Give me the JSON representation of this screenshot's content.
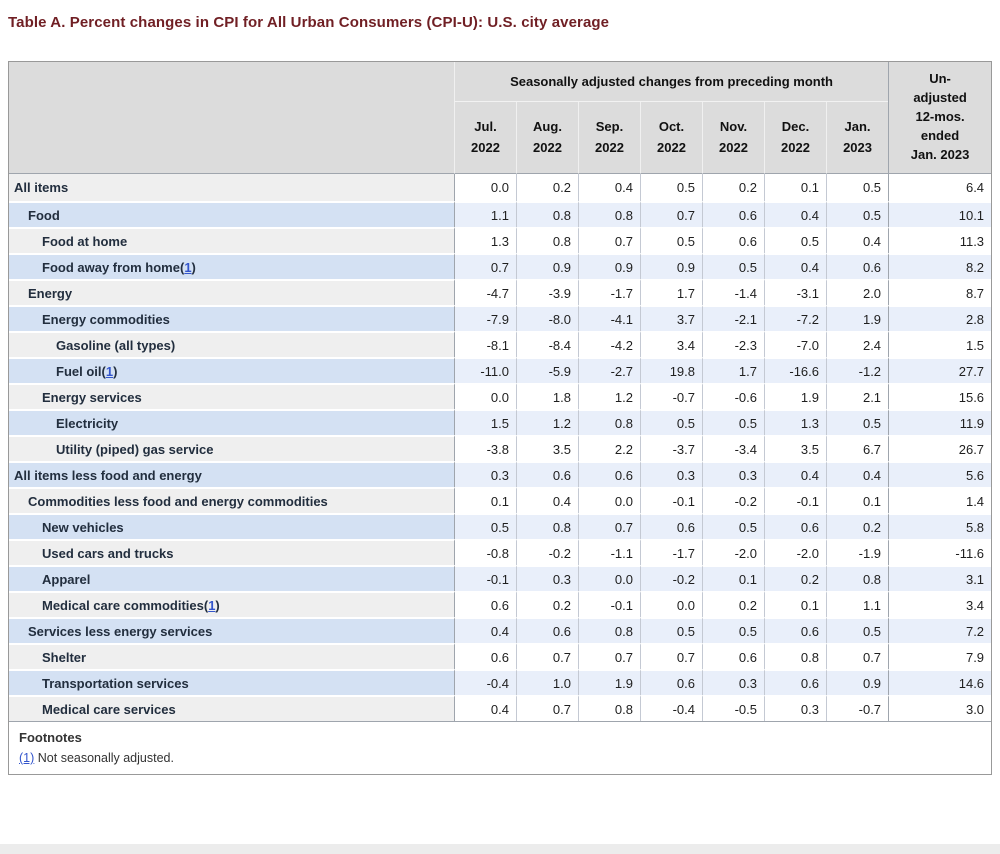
{
  "page": {
    "title": "Table A. Percent changes in CPI for All Urban Consumers (CPI-U): U.S. city average"
  },
  "colors": {
    "title_accent": "#701f24",
    "link_blue": "#3355cc",
    "header_bg": "#dcdcdc",
    "stub_blue": "#d4e1f3",
    "data_blue": "#e9effa",
    "stub_gray": "#efefef"
  },
  "table": {
    "group_header": "Seasonally adjusted changes from preceding month",
    "unadjusted_header": "Un-\nadjusted\n12-mos.\nended\nJan. 2023",
    "columns": [
      "Jul.\n2022",
      "Aug.\n2022",
      "Sep.\n2022",
      "Oct.\n2022",
      "Nov.\n2022",
      "Dec.\n2022",
      "Jan.\n2023"
    ],
    "rows": [
      {
        "label": "All items",
        "indent": 0,
        "footnote": null,
        "values": [
          "0.0",
          "0.2",
          "0.4",
          "0.5",
          "0.2",
          "0.1",
          "0.5",
          "6.4"
        ]
      },
      {
        "label": "Food",
        "indent": 1,
        "footnote": null,
        "values": [
          "1.1",
          "0.8",
          "0.8",
          "0.7",
          "0.6",
          "0.4",
          "0.5",
          "10.1"
        ]
      },
      {
        "label": "Food at home",
        "indent": 2,
        "footnote": null,
        "values": [
          "1.3",
          "0.8",
          "0.7",
          "0.5",
          "0.6",
          "0.5",
          "0.4",
          "11.3"
        ]
      },
      {
        "label": "Food away from home",
        "indent": 2,
        "footnote": "1",
        "values": [
          "0.7",
          "0.9",
          "0.9",
          "0.9",
          "0.5",
          "0.4",
          "0.6",
          "8.2"
        ]
      },
      {
        "label": "Energy",
        "indent": 1,
        "footnote": null,
        "values": [
          "-4.7",
          "-3.9",
          "-1.7",
          "1.7",
          "-1.4",
          "-3.1",
          "2.0",
          "8.7"
        ]
      },
      {
        "label": "Energy commodities",
        "indent": 2,
        "footnote": null,
        "values": [
          "-7.9",
          "-8.0",
          "-4.1",
          "3.7",
          "-2.1",
          "-7.2",
          "1.9",
          "2.8"
        ]
      },
      {
        "label": "Gasoline (all types)",
        "indent": 3,
        "footnote": null,
        "values": [
          "-8.1",
          "-8.4",
          "-4.2",
          "3.4",
          "-2.3",
          "-7.0",
          "2.4",
          "1.5"
        ]
      },
      {
        "label": "Fuel oil",
        "indent": 3,
        "footnote": "1",
        "values": [
          "-11.0",
          "-5.9",
          "-2.7",
          "19.8",
          "1.7",
          "-16.6",
          "-1.2",
          "27.7"
        ]
      },
      {
        "label": "Energy services",
        "indent": 2,
        "footnote": null,
        "values": [
          "0.0",
          "1.8",
          "1.2",
          "-0.7",
          "-0.6",
          "1.9",
          "2.1",
          "15.6"
        ]
      },
      {
        "label": "Electricity",
        "indent": 3,
        "footnote": null,
        "values": [
          "1.5",
          "1.2",
          "0.8",
          "0.5",
          "0.5",
          "1.3",
          "0.5",
          "11.9"
        ]
      },
      {
        "label": "Utility (piped) gas service",
        "indent": 3,
        "footnote": null,
        "values": [
          "-3.8",
          "3.5",
          "2.2",
          "-3.7",
          "-3.4",
          "3.5",
          "6.7",
          "26.7"
        ]
      },
      {
        "label": "All items less food and energy",
        "indent": 0,
        "footnote": null,
        "values": [
          "0.3",
          "0.6",
          "0.6",
          "0.3",
          "0.3",
          "0.4",
          "0.4",
          "5.6"
        ]
      },
      {
        "label": "Commodities less food and energy commodities",
        "indent": 1,
        "footnote": null,
        "values": [
          "0.1",
          "0.4",
          "0.0",
          "-0.1",
          "-0.2",
          "-0.1",
          "0.1",
          "1.4"
        ]
      },
      {
        "label": "New vehicles",
        "indent": 2,
        "footnote": null,
        "values": [
          "0.5",
          "0.8",
          "0.7",
          "0.6",
          "0.5",
          "0.6",
          "0.2",
          "5.8"
        ]
      },
      {
        "label": "Used cars and trucks",
        "indent": 2,
        "footnote": null,
        "values": [
          "-0.8",
          "-0.2",
          "-1.1",
          "-1.7",
          "-2.0",
          "-2.0",
          "-1.9",
          "-11.6"
        ]
      },
      {
        "label": "Apparel",
        "indent": 2,
        "footnote": null,
        "values": [
          "-0.1",
          "0.3",
          "0.0",
          "-0.2",
          "0.1",
          "0.2",
          "0.8",
          "3.1"
        ]
      },
      {
        "label": "Medical care commodities",
        "indent": 2,
        "footnote": "1",
        "values": [
          "0.6",
          "0.2",
          "-0.1",
          "0.0",
          "0.2",
          "0.1",
          "1.1",
          "3.4"
        ]
      },
      {
        "label": "Services less energy services",
        "indent": 1,
        "footnote": null,
        "values": [
          "0.4",
          "0.6",
          "0.8",
          "0.5",
          "0.5",
          "0.6",
          "0.5",
          "7.2"
        ]
      },
      {
        "label": "Shelter",
        "indent": 2,
        "footnote": null,
        "values": [
          "0.6",
          "0.7",
          "0.7",
          "0.7",
          "0.6",
          "0.8",
          "0.7",
          "7.9"
        ]
      },
      {
        "label": "Transportation services",
        "indent": 2,
        "footnote": null,
        "values": [
          "-0.4",
          "1.0",
          "1.9",
          "0.6",
          "0.3",
          "0.6",
          "0.9",
          "14.6"
        ]
      },
      {
        "label": "Medical care services",
        "indent": 2,
        "footnote": null,
        "values": [
          "0.4",
          "0.7",
          "0.8",
          "-0.4",
          "-0.5",
          "0.3",
          "-0.7",
          "3.0"
        ]
      }
    ]
  },
  "footnotes": {
    "heading": "Footnotes",
    "items": [
      {
        "marker": "(1)",
        "text": "Not seasonally adjusted."
      }
    ]
  }
}
